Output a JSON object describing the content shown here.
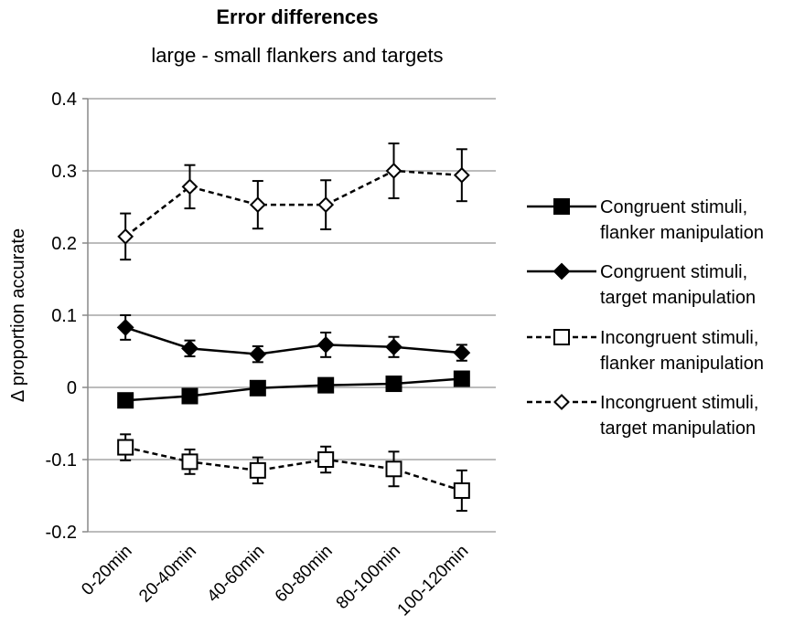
{
  "chart_data": {
    "type": "line",
    "title": "Error differences",
    "subtitle": "large - small flankers and targets",
    "xlabel": "",
    "ylabel": "Δ proportion accurate",
    "categories": [
      "0-20min",
      "20-40min",
      "40-60min",
      "60-80min",
      "80-100min",
      "100-120min"
    ],
    "ylim": [
      -0.2,
      0.4
    ],
    "yticks": [
      -0.2,
      -0.1,
      0,
      0.1,
      0.2,
      0.3,
      0.4
    ],
    "ytick_labels": [
      "-0.2",
      "-0.1",
      "0",
      "0.1",
      "0.2",
      "0.3",
      "0.4"
    ],
    "grid": true,
    "legend_position": "right",
    "series": [
      {
        "name": "Congruent stimuli, flanker manipulation",
        "legend_lines": [
          "Congruent stimuli,",
          "flanker manipulation"
        ],
        "marker": "square-filled",
        "line_style": "solid",
        "values": [
          -0.018,
          -0.012,
          -0.001,
          0.003,
          0.005,
          0.012
        ],
        "errors": [
          0.006,
          0.004,
          0.003,
          0.005,
          0.005,
          0.005
        ]
      },
      {
        "name": "Congruent stimuli, target manipulation",
        "legend_lines": [
          "Congruent stimuli,",
          "target manipulation"
        ],
        "marker": "diamond-filled",
        "line_style": "solid",
        "values": [
          0.083,
          0.054,
          0.046,
          0.059,
          0.056,
          0.048
        ],
        "errors": [
          0.017,
          0.011,
          0.011,
          0.017,
          0.014,
          0.011
        ]
      },
      {
        "name": "Incongruent stimuli, flanker manipulation",
        "legend_lines": [
          "Incongruent stimuli,",
          "flanker manipulation"
        ],
        "marker": "square-open",
        "line_style": "dashed",
        "values": [
          -0.083,
          -0.103,
          -0.115,
          -0.1,
          -0.113,
          -0.143
        ],
        "errors": [
          0.018,
          0.017,
          0.018,
          0.018,
          0.024,
          0.028
        ]
      },
      {
        "name": "Incongruent stimuli, target manipulation",
        "legend_lines": [
          "Incongruent stimuli,",
          "target manipulation"
        ],
        "marker": "diamond-open",
        "line_style": "dashed",
        "values": [
          0.209,
          0.278,
          0.253,
          0.253,
          0.3,
          0.294
        ],
        "errors": [
          0.032,
          0.03,
          0.033,
          0.034,
          0.038,
          0.036
        ]
      }
    ]
  }
}
